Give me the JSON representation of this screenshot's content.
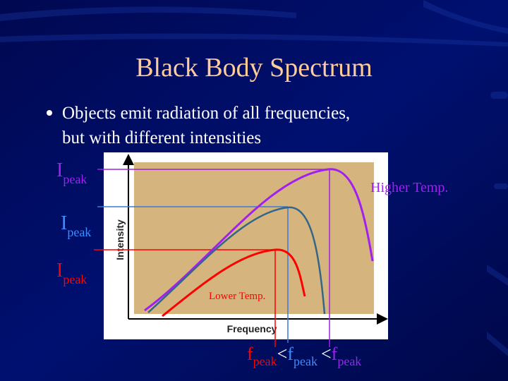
{
  "title": "Black Body Spectrum",
  "bullets": [
    {
      "lines": [
        "Objects emit radiation of all frequencies,",
        "but with different intensities"
      ]
    }
  ],
  "figure": {
    "y_axis_label": "Intensity",
    "x_axis_label": "Frequency",
    "higher_label": "Higher Temp.",
    "lower_label": "Lower Temp.",
    "peak_labels": [
      {
        "symbol": "I",
        "subscript": "peak"
      },
      {
        "symbol": "I",
        "subscript": "peak"
      },
      {
        "symbol": "I",
        "subscript": "peak"
      }
    ],
    "frequency_relation": [
      {
        "symbol": "f",
        "subscript": "peak"
      },
      "<",
      {
        "symbol": "f",
        "subscript": "peak"
      },
      "<",
      {
        "symbol": "f",
        "subscript": "peak"
      }
    ]
  }
}
